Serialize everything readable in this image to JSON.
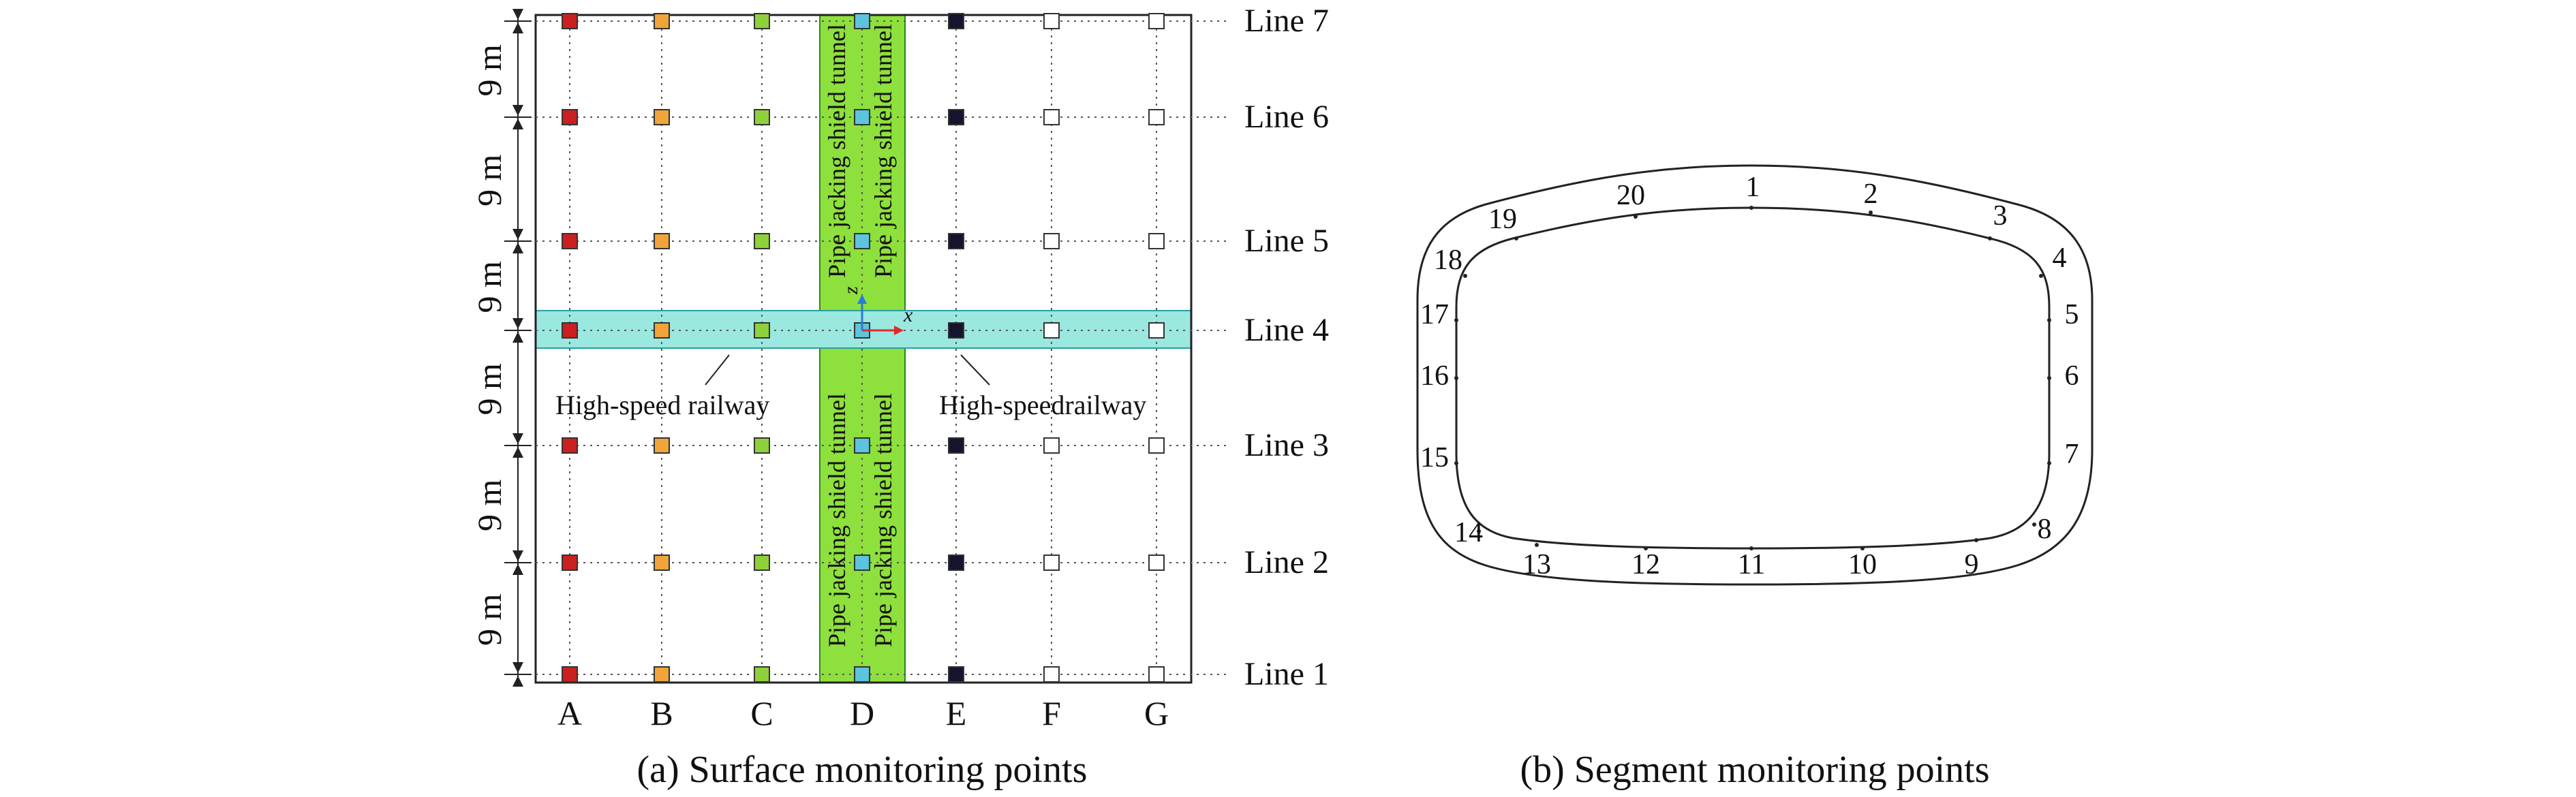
{
  "colors": {
    "column_A": "#cc1f1f",
    "column_B": "#f0a43a",
    "column_C": "#8fd13a",
    "column_D": "#5cc4dc",
    "column_E": "#14142e",
    "column_F": "#ffffff",
    "column_G": "#ffffff",
    "shield_tunnel_fill": "#8ee03c",
    "railway_fill": "#9ae8e0",
    "outline": "#222222",
    "axis_x": "#e02a2a",
    "axis_z": "#2a7ad8"
  },
  "panel_a": {
    "columns": [
      "A",
      "B",
      "C",
      "D",
      "E",
      "F",
      "G"
    ],
    "lines": [
      "Line 7",
      "Line 6",
      "Line 5",
      "Line 4",
      "Line 3",
      "Line 2",
      "Line 1"
    ],
    "spacing_labels": [
      "9 m",
      "9 m",
      "9 m",
      "9 m",
      "9 m",
      "9 m"
    ],
    "tunnel_labels_upper": [
      "Pipe jacking shield tunnel",
      "Pipe jacking shield tunnel"
    ],
    "tunnel_labels_lower": [
      "Pipe jacking shield tunnel",
      "Pipe jacking shield tunnel"
    ],
    "railway_label_left": "High-speed railway",
    "railway_label_right": "High-speedrailway",
    "axis_x_label": "x",
    "axis_z_label": "z",
    "caption": "(a) Surface monitoring points"
  },
  "panel_b": {
    "point_labels": [
      "1",
      "2",
      "3",
      "4",
      "5",
      "6",
      "7",
      "8",
      "9",
      "10",
      "11",
      "12",
      "13",
      "14",
      "15",
      "16",
      "17",
      "18",
      "19",
      "20"
    ],
    "caption": "(b) Segment monitoring points"
  }
}
